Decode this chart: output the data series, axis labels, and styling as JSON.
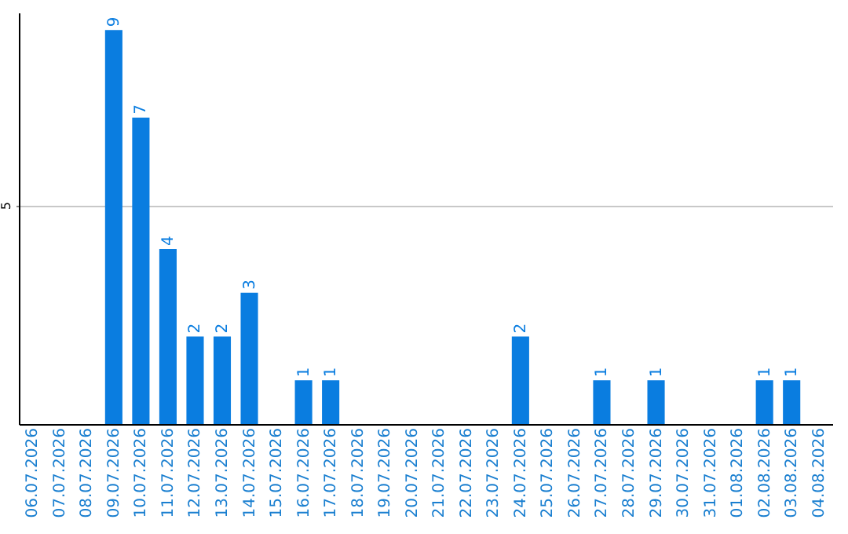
{
  "chart_data": {
    "type": "bar",
    "categories": [
      "06.07.2026",
      "07.07.2026",
      "08.07.2026",
      "09.07.2026",
      "10.07.2026",
      "11.07.2026",
      "12.07.2026",
      "13.07.2026",
      "14.07.2026",
      "15.07.2026",
      "16.07.2026",
      "17.07.2026",
      "18.07.2026",
      "19.07.2026",
      "20.07.2026",
      "21.07.2026",
      "22.07.2026",
      "23.07.2026",
      "24.07.2026",
      "25.07.2026",
      "26.07.2026",
      "27.07.2026",
      "28.07.2026",
      "29.07.2026",
      "30.07.2026",
      "31.07.2026",
      "01.08.2026",
      "02.08.2026",
      "03.08.2026",
      "04.08.2026"
    ],
    "values": [
      0,
      0,
      0,
      9,
      7,
      4,
      2,
      2,
      3,
      0,
      1,
      1,
      0,
      0,
      0,
      0,
      0,
      0,
      2,
      0,
      0,
      1,
      0,
      1,
      0,
      0,
      0,
      1,
      1,
      0
    ],
    "value_labels": [
      null,
      null,
      null,
      "9",
      "7",
      "4",
      "2",
      "2",
      "3",
      null,
      "1",
      "1",
      null,
      null,
      null,
      null,
      null,
      null,
      "2",
      null,
      null,
      "1",
      null,
      "1",
      null,
      null,
      null,
      "1",
      "1",
      null
    ],
    "color": "#0a7de0",
    "ylim": [
      0,
      9.4
    ],
    "yticks": [
      5
    ],
    "grid": "y"
  }
}
